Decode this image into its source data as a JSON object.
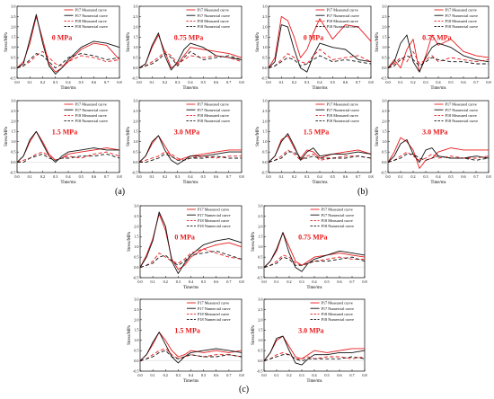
{
  "figure": {
    "group_labels": [
      "(a)",
      "(b)",
      "(c)"
    ]
  },
  "chart_data": {
    "type": "line",
    "shared": {
      "xlabel": "Time/ms",
      "ylabel": "Stress/MPa",
      "xlim": [
        0.0,
        0.8
      ],
      "ylim": [
        -0.5,
        3.0
      ],
      "xticks": [
        "0.0",
        "0.1",
        "0.2",
        "0.3",
        "0.4",
        "0.5",
        "0.6",
        "0.7",
        "0.8"
      ],
      "yticks": [
        "-0.5",
        "0.0",
        "0.5",
        "1.0",
        "1.5",
        "2.0",
        "2.5",
        "3.0"
      ],
      "legend": [
        "P17 Measured curve",
        "P17 Numercial curve",
        "P18 Measured curve",
        "P18 Numercial curve"
      ],
      "series_styles": [
        {
          "color": "#e8191b",
          "dash": "solid"
        },
        {
          "color": "#111111",
          "dash": "solid"
        },
        {
          "color": "#e8191b",
          "dash": "dashed"
        },
        {
          "color": "#111111",
          "dash": "dashed"
        }
      ]
    },
    "panels": [
      {
        "group": "(a)",
        "pressure": "0 MPa",
        "x": [
          0,
          0.05,
          0.1,
          0.15,
          0.2,
          0.25,
          0.3,
          0.35,
          0.4,
          0.5,
          0.6,
          0.7,
          0.8
        ],
        "series": [
          [
            0,
            0.3,
            1.2,
            2.5,
            1.4,
            0.2,
            -0.2,
            0.0,
            0.3,
            0.9,
            1.2,
            1.1,
            0.4
          ],
          [
            0,
            0.2,
            1.4,
            2.6,
            1.2,
            0.1,
            -0.3,
            0.0,
            0.4,
            1.0,
            1.3,
            1.2,
            1.0
          ],
          [
            0,
            0.1,
            0.3,
            0.6,
            0.8,
            0.5,
            0.2,
            0.1,
            0.3,
            0.6,
            0.5,
            0.3,
            0.4
          ],
          [
            0,
            0.1,
            0.4,
            0.7,
            0.6,
            0.3,
            0.0,
            0.2,
            0.5,
            0.7,
            0.6,
            0.4,
            0.5
          ]
        ]
      },
      {
        "group": "(a)",
        "pressure": "0.75 MPa",
        "x": [
          0,
          0.05,
          0.1,
          0.15,
          0.2,
          0.25,
          0.3,
          0.35,
          0.4,
          0.5,
          0.6,
          0.7,
          0.8
        ],
        "series": [
          [
            0,
            0.2,
            1.0,
            1.6,
            0.8,
            0.0,
            0.2,
            0.6,
            1.0,
            0.9,
            0.8,
            0.7,
            0.5
          ],
          [
            0,
            0.2,
            1.1,
            1.7,
            0.6,
            -0.1,
            0.3,
            0.9,
            1.2,
            1.0,
            0.6,
            0.5,
            0.4
          ],
          [
            0,
            0.1,
            0.3,
            0.5,
            0.8,
            0.6,
            0.2,
            0.4,
            0.6,
            0.5,
            0.6,
            0.5,
            0.3
          ],
          [
            0,
            0.1,
            0.2,
            0.4,
            0.7,
            0.5,
            0.1,
            0.5,
            0.8,
            0.4,
            0.5,
            0.6,
            0.4
          ]
        ]
      },
      {
        "group": "(a)",
        "pressure": "1.5 MPa",
        "x": [
          0,
          0.05,
          0.1,
          0.15,
          0.2,
          0.25,
          0.3,
          0.35,
          0.4,
          0.5,
          0.6,
          0.7,
          0.8
        ],
        "series": [
          [
            0,
            0.3,
            1.0,
            1.5,
            1.0,
            0.4,
            0.1,
            0.2,
            0.4,
            0.5,
            0.6,
            0.7,
            0.6
          ],
          [
            0,
            0.3,
            1.1,
            1.5,
            0.9,
            0.3,
            0.0,
            0.3,
            0.5,
            0.6,
            0.7,
            0.6,
            0.6
          ],
          [
            0,
            0.1,
            0.2,
            0.4,
            0.5,
            0.3,
            0.1,
            0.2,
            0.3,
            0.2,
            0.4,
            0.5,
            0.3
          ],
          [
            0,
            0.0,
            0.2,
            0.3,
            0.4,
            0.2,
            0.1,
            0.2,
            0.2,
            0.3,
            0.3,
            0.4,
            0.2
          ]
        ]
      },
      {
        "group": "(a)",
        "pressure": "3.0 MPa",
        "x": [
          0,
          0.05,
          0.1,
          0.15,
          0.2,
          0.25,
          0.3,
          0.35,
          0.4,
          0.5,
          0.6,
          0.7,
          0.8
        ],
        "series": [
          [
            0,
            0.3,
            0.9,
            1.3,
            0.8,
            0.3,
            0.1,
            0.2,
            0.3,
            0.4,
            0.5,
            0.6,
            0.6
          ],
          [
            0,
            0.3,
            1.0,
            1.3,
            0.6,
            0.1,
            -0.1,
            0.1,
            0.3,
            0.3,
            0.4,
            0.5,
            0.5
          ],
          [
            0,
            0.1,
            0.2,
            0.3,
            0.5,
            0.4,
            0.2,
            0.1,
            0.2,
            0.3,
            0.2,
            0.3,
            0.3
          ],
          [
            0,
            0.0,
            0.1,
            0.2,
            0.4,
            0.3,
            0.1,
            0.1,
            0.2,
            0.2,
            0.3,
            0.2,
            0.2
          ]
        ]
      },
      {
        "group": "(b)",
        "pressure": "0 MPa",
        "x": [
          0,
          0.05,
          0.1,
          0.15,
          0.2,
          0.25,
          0.3,
          0.35,
          0.4,
          0.5,
          0.6,
          0.7,
          0.8
        ],
        "series": [
          [
            0,
            0.5,
            2.5,
            2.3,
            1.5,
            0.5,
            0.9,
            1.7,
            2.4,
            1.4,
            2.1,
            2.0,
            1.3
          ],
          [
            0,
            0.3,
            2.1,
            2.0,
            0.9,
            0.0,
            -0.2,
            0.6,
            1.2,
            1.0,
            0.9,
            0.4,
            0.3
          ],
          [
            0,
            0.1,
            0.4,
            0.7,
            0.5,
            0.3,
            0.2,
            0.6,
            0.9,
            0.4,
            0.5,
            0.6,
            0.3
          ],
          [
            0,
            0.1,
            0.3,
            0.5,
            0.4,
            0.1,
            0.2,
            0.4,
            0.6,
            0.3,
            0.4,
            0.3,
            0.2
          ]
        ]
      },
      {
        "group": "(b)",
        "pressure": "0.75 MPa",
        "x": [
          0,
          0.05,
          0.1,
          0.15,
          0.2,
          0.25,
          0.3,
          0.35,
          0.4,
          0.5,
          0.6,
          0.7,
          0.8
        ],
        "series": [
          [
            0,
            0.4,
            0.0,
            0.9,
            1.4,
            -0.2,
            0.6,
            1.6,
            1.1,
            1.4,
            0.8,
            0.6,
            0.5
          ],
          [
            0,
            0.3,
            1.2,
            1.6,
            0.3,
            -0.2,
            0.5,
            1.0,
            1.2,
            1.0,
            0.6,
            0.4,
            0.3
          ],
          [
            0,
            0.2,
            0.5,
            0.3,
            0.8,
            0.2,
            0.4,
            0.6,
            0.3,
            0.5,
            0.4,
            0.3,
            0.4
          ],
          [
            0,
            0.1,
            0.4,
            0.6,
            0.4,
            0.1,
            0.3,
            0.5,
            0.4,
            0.3,
            0.3,
            0.2,
            0.2
          ]
        ]
      },
      {
        "group": "(b)",
        "pressure": "1.5 MPa",
        "x": [
          0,
          0.05,
          0.1,
          0.15,
          0.2,
          0.25,
          0.3,
          0.35,
          0.4,
          0.5,
          0.6,
          0.7,
          0.8
        ],
        "series": [
          [
            0,
            0.3,
            1.1,
            1.3,
            0.7,
            0.2,
            0.6,
            0.5,
            0.2,
            0.4,
            0.5,
            0.6,
            0.4
          ],
          [
            0,
            0.3,
            1.0,
            1.4,
            0.8,
            0.1,
            0.5,
            0.7,
            0.3,
            0.4,
            0.4,
            0.5,
            0.4
          ],
          [
            0,
            0.1,
            0.3,
            0.6,
            0.4,
            0.1,
            0.3,
            0.4,
            0.1,
            0.2,
            0.3,
            0.3,
            0.2
          ],
          [
            0,
            0.1,
            0.2,
            0.5,
            0.5,
            0.2,
            0.2,
            0.3,
            0.2,
            0.2,
            0.2,
            0.3,
            0.2
          ]
        ]
      },
      {
        "group": "(b)",
        "pressure": "3.0 MPa",
        "x": [
          0,
          0.05,
          0.1,
          0.15,
          0.2,
          0.25,
          0.3,
          0.35,
          0.4,
          0.5,
          0.6,
          0.7,
          0.8
        ],
        "series": [
          [
            0,
            0.5,
            1.2,
            1.0,
            0.6,
            -0.3,
            0.1,
            0.2,
            0.5,
            0.7,
            0.6,
            0.6,
            0.6
          ],
          [
            0,
            0.3,
            0.9,
            1.1,
            0.4,
            0.0,
            0.6,
            0.7,
            0.3,
            0.2,
            0.2,
            0.3,
            0.2
          ],
          [
            0,
            0.1,
            0.3,
            0.5,
            0.3,
            0.1,
            0.2,
            0.4,
            0.2,
            0.3,
            0.2,
            0.2,
            0.3
          ],
          [
            0,
            0.1,
            0.2,
            0.4,
            0.4,
            0.2,
            0.1,
            0.2,
            0.3,
            0.2,
            0.2,
            0.1,
            0.2
          ]
        ]
      },
      {
        "group": "(c)",
        "pressure": "0 MPa",
        "x": [
          0,
          0.05,
          0.1,
          0.15,
          0.2,
          0.25,
          0.3,
          0.35,
          0.4,
          0.5,
          0.6,
          0.7,
          0.8
        ],
        "series": [
          [
            0,
            0.6,
            1.4,
            2.6,
            1.8,
            0.4,
            -0.1,
            0.1,
            0.5,
            0.9,
            1.1,
            1.2,
            1.0
          ],
          [
            0,
            0.5,
            1.3,
            2.7,
            2.0,
            0.3,
            -0.3,
            0.2,
            0.6,
            1.1,
            1.3,
            1.4,
            1.2
          ],
          [
            0,
            0.1,
            0.3,
            0.7,
            0.5,
            0.3,
            0.2,
            0.4,
            0.7,
            0.9,
            0.7,
            0.5,
            0.4
          ],
          [
            0,
            0.1,
            0.2,
            0.5,
            0.6,
            0.3,
            0.1,
            0.3,
            0.6,
            0.7,
            0.8,
            0.6,
            0.4
          ]
        ]
      },
      {
        "group": "(c)",
        "pressure": "0.75 MPa",
        "x": [
          0,
          0.05,
          0.1,
          0.15,
          0.2,
          0.25,
          0.3,
          0.35,
          0.4,
          0.5,
          0.6,
          0.7,
          0.8
        ],
        "series": [
          [
            0,
            0.3,
            0.8,
            1.7,
            1.0,
            0.3,
            0.1,
            0.3,
            0.5,
            0.6,
            0.7,
            0.6,
            0.5
          ],
          [
            0,
            0.3,
            0.9,
            1.7,
            0.7,
            0.0,
            -0.2,
            0.2,
            0.4,
            0.6,
            0.8,
            0.7,
            0.6
          ],
          [
            0,
            0.1,
            0.3,
            0.6,
            0.5,
            0.2,
            0.1,
            0.2,
            0.3,
            0.4,
            0.5,
            0.4,
            0.4
          ],
          [
            0,
            0.1,
            0.2,
            0.5,
            0.4,
            0.1,
            0.1,
            0.2,
            0.3,
            0.3,
            0.4,
            0.5,
            0.3
          ]
        ]
      },
      {
        "group": "(c)",
        "pressure": "1.5 MPa",
        "x": [
          0,
          0.05,
          0.1,
          0.15,
          0.2,
          0.25,
          0.3,
          0.35,
          0.4,
          0.5,
          0.6,
          0.7,
          0.8
        ],
        "series": [
          [
            0,
            0.3,
            0.8,
            1.4,
            1.0,
            0.5,
            0.2,
            0.3,
            0.5,
            0.4,
            0.5,
            0.4,
            0.5
          ],
          [
            0,
            0.3,
            0.9,
            1.4,
            0.8,
            0.2,
            -0.1,
            0.2,
            0.4,
            0.5,
            0.6,
            0.5,
            0.4
          ],
          [
            0,
            0.1,
            0.3,
            0.5,
            0.6,
            0.3,
            0.1,
            0.2,
            0.3,
            0.2,
            0.3,
            0.3,
            0.2
          ],
          [
            0,
            0.1,
            0.2,
            0.4,
            0.5,
            0.2,
            0.1,
            0.2,
            0.3,
            0.2,
            0.2,
            0.3,
            0.2
          ]
        ]
      },
      {
        "group": "(c)",
        "pressure": "3.0 MPa",
        "x": [
          0,
          0.05,
          0.1,
          0.15,
          0.2,
          0.25,
          0.3,
          0.35,
          0.4,
          0.5,
          0.6,
          0.7,
          0.8
        ],
        "series": [
          [
            0,
            0.4,
            1.0,
            1.2,
            0.7,
            0.2,
            0.1,
            0.3,
            0.5,
            0.4,
            0.5,
            0.6,
            0.6
          ],
          [
            0,
            0.4,
            1.1,
            1.2,
            0.5,
            -0.1,
            -0.2,
            0.1,
            0.3,
            0.3,
            0.4,
            0.4,
            0.5
          ],
          [
            0,
            0.1,
            0.3,
            0.4,
            0.3,
            0.1,
            0.1,
            0.2,
            0.1,
            0.2,
            0.2,
            0.1,
            0.2
          ],
          [
            0,
            0.1,
            0.2,
            0.3,
            0.3,
            0.1,
            0.0,
            0.1,
            0.1,
            0.1,
            0.1,
            0.2,
            0.1
          ]
        ]
      }
    ]
  }
}
